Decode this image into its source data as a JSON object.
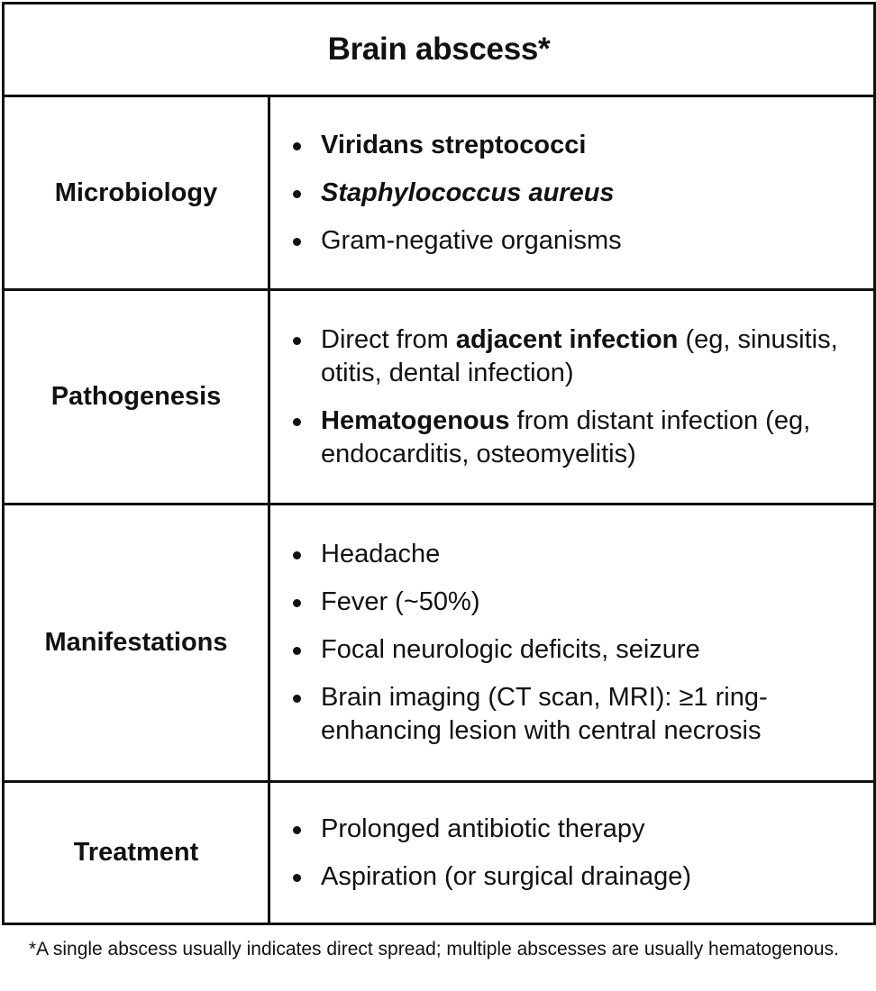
{
  "title": "Brain abscess*",
  "rows": {
    "microbiology": {
      "label": "Microbiology",
      "items": [
        {
          "text": "Viridans streptococci"
        },
        {
          "text": "Staphylococcus aureus"
        },
        {
          "text": "Gram-negative organisms"
        }
      ]
    },
    "pathogenesis": {
      "label": "Pathogenesis",
      "items": [
        {
          "pre": "Direct from ",
          "bold": "adjacent infection",
          "post": " (eg, sinusitis, otitis, dental infection)"
        },
        {
          "bold": "Hematogenous",
          "post": " from distant infection (eg, endocarditis, osteomyelitis)"
        }
      ]
    },
    "manifestations": {
      "label": "Manifestations",
      "items": [
        {
          "text": "Headache"
        },
        {
          "text": "Fever (~50%)"
        },
        {
          "text": "Focal neurologic deficits, seizure"
        },
        {
          "text": "Brain imaging (CT scan, MRI): ≥1 ring-enhancing lesion with central necrosis"
        }
      ]
    },
    "treatment": {
      "label": "Treatment",
      "items": [
        {
          "text": "Prolonged antibiotic therapy"
        },
        {
          "text": "Aspiration (or surgical drainage)"
        }
      ]
    }
  },
  "footnote": "*A single abscess usually indicates direct spread; multiple abscesses are usually hematogenous."
}
